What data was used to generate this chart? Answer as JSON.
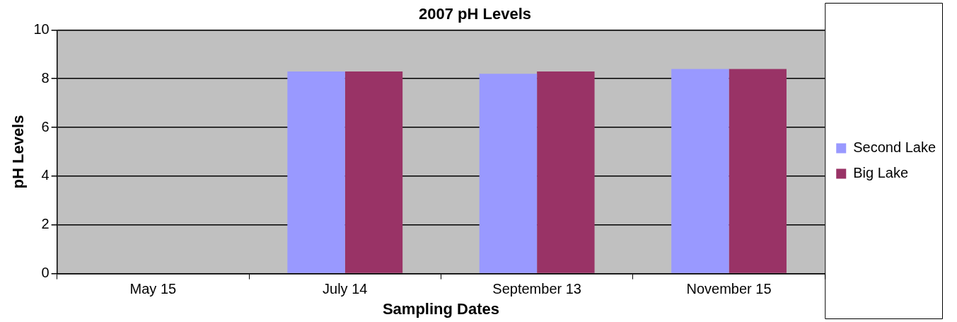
{
  "chart_data": {
    "type": "bar",
    "title": "2007 pH Levels",
    "xlabel": "Sampling Dates",
    "ylabel": "pH Levels",
    "categories": [
      "May 15",
      "July 14",
      "September 13",
      "November 15"
    ],
    "series": [
      {
        "name": "Second Lake",
        "color": "#9999ff",
        "values": [
          null,
          8.3,
          8.2,
          8.4
        ]
      },
      {
        "name": "Big Lake",
        "color": "#993366",
        "values": [
          null,
          8.3,
          8.3,
          8.4
        ]
      }
    ],
    "ylim": [
      0,
      10
    ],
    "yticks": [
      0,
      2,
      4,
      6,
      8,
      10
    ],
    "grid": "y",
    "legend": "right"
  }
}
